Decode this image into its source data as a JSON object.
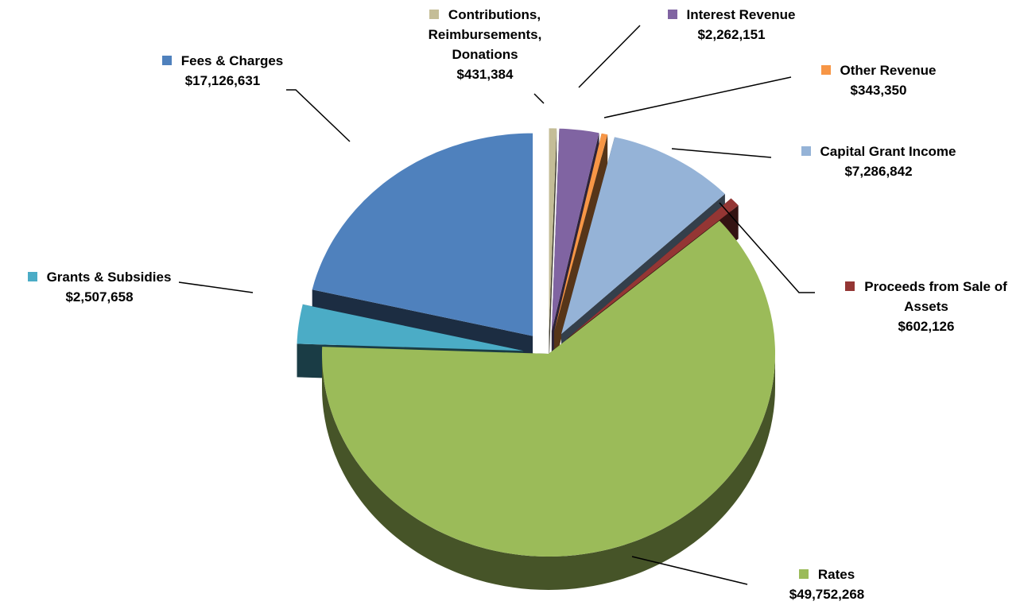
{
  "chart_data": {
    "type": "pie",
    "categories": [
      "Contributions, Reimbursements, Donations",
      "Interest Revenue",
      "Other Revenue",
      "Capital Grant Income",
      "Proceeds from Sale of Assets",
      "Rates",
      "Grants & Subsidies",
      "Fees & Charges"
    ],
    "values": [
      431384,
      2262151,
      343350,
      7286842,
      602126,
      49752268,
      2507658,
      17126631
    ],
    "value_labels": [
      "$431,384",
      "$2,262,151",
      "$343,350",
      "$7,286,842",
      "$602,126",
      "$49,752,268",
      "$2,507,658",
      "$17,126,631"
    ],
    "colors": [
      "#c4bd97",
      "#8064a2",
      "#f79646",
      "#95b3d7",
      "#943634",
      "#9bbb59",
      "#4bacc6",
      "#4f81bd"
    ]
  }
}
